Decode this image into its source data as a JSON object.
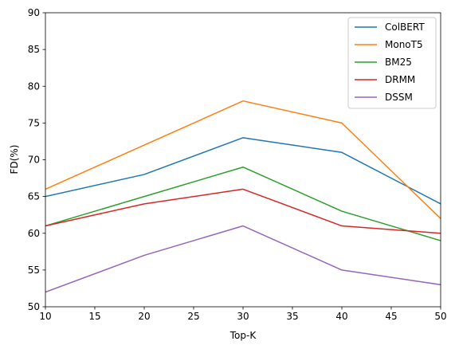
{
  "chart_data": {
    "type": "line",
    "title": "",
    "xlabel": "Top-K",
    "ylabel": "FD(%)",
    "x": [
      10,
      20,
      30,
      40,
      50
    ],
    "xlim": [
      10,
      50
    ],
    "ylim": [
      50,
      90
    ],
    "xticks": [
      10,
      15,
      20,
      25,
      30,
      35,
      40,
      45,
      50
    ],
    "yticks": [
      50,
      55,
      60,
      65,
      70,
      75,
      80,
      85,
      90
    ],
    "grid": false,
    "legend_position": "top-right",
    "series": [
      {
        "name": "ColBERT",
        "color": "#1f77b4",
        "values": [
          65,
          68,
          73,
          71,
          64
        ]
      },
      {
        "name": "MonoT5",
        "color": "#ff7f0e",
        "values": [
          66,
          72,
          78,
          75,
          62
        ]
      },
      {
        "name": "BM25",
        "color": "#2ca02c",
        "values": [
          61,
          65,
          69,
          63,
          59
        ]
      },
      {
        "name": "DRMM",
        "color": "#d62728",
        "values": [
          61,
          64,
          66,
          61,
          60
        ]
      },
      {
        "name": "DSSM",
        "color": "#9467bd",
        "values": [
          52,
          57,
          61,
          55,
          53
        ]
      }
    ]
  }
}
